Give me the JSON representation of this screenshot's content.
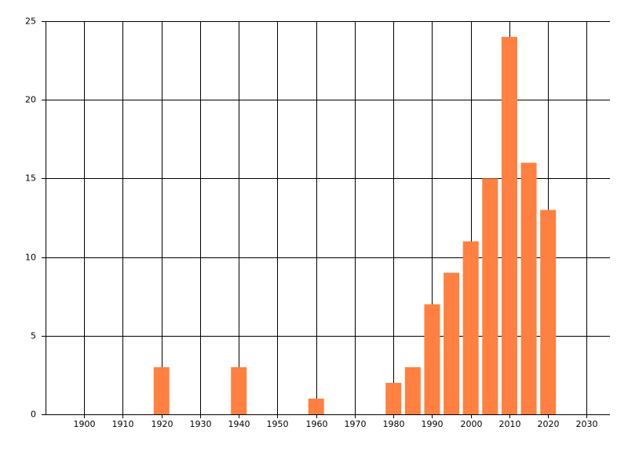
{
  "chart_data": {
    "type": "bar",
    "x": [
      1920,
      1940,
      1960,
      1980,
      1985,
      1990,
      1995,
      2000,
      2005,
      2010,
      2015,
      2020
    ],
    "values": [
      3,
      3,
      1,
      2,
      3,
      7,
      9,
      11,
      15,
      24,
      16,
      13
    ],
    "color": "#ff8040",
    "xlim": [
      1890,
      2036
    ],
    "xticks": [
      1900,
      1910,
      1920,
      1930,
      1940,
      1950,
      1960,
      1970,
      1980,
      1990,
      2000,
      2010,
      2020,
      2030
    ],
    "ylim": [
      0,
      25
    ],
    "yticks": [
      0,
      5,
      10,
      15,
      20,
      25
    ],
    "grid": true
  }
}
